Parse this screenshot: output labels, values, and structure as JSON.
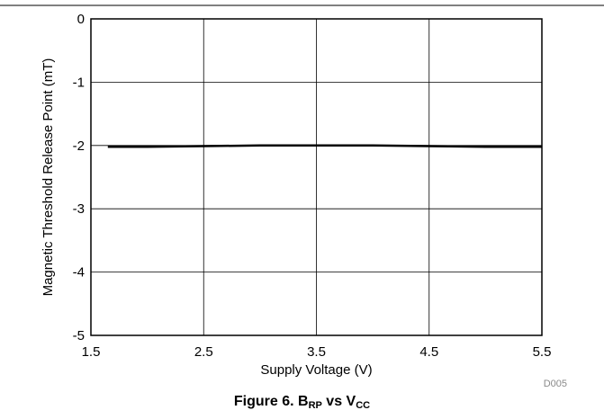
{
  "figure": {
    "id_label": "D005",
    "caption": {
      "prefix": "Figure 6. B",
      "sub1": "RP",
      "middle": " vs V",
      "sub2": "CC"
    }
  },
  "colors": {
    "line": "#000000",
    "grid": "#000000",
    "top_rule": "#000000",
    "watermark": "#8a8a8a"
  },
  "chart_data": {
    "type": "line",
    "title": "",
    "xlabel": "Supply Voltage (V)",
    "ylabel": "Magnetic Threshold Release Point (mT)",
    "xlim": [
      1.5,
      5.5
    ],
    "ylim": [
      -5,
      0
    ],
    "xticks": [
      1.5,
      2.5,
      3.5,
      4.5,
      5.5
    ],
    "xtick_labels": [
      "1.5",
      "2.5",
      "3.5",
      "4.5",
      "5.5"
    ],
    "yticks": [
      0,
      -1,
      -2,
      -3,
      -4,
      -5
    ],
    "ytick_labels": [
      "0",
      "-1",
      "-2",
      "-3",
      "-4",
      "-5"
    ],
    "grid": true,
    "series": [
      {
        "x": [
          1.65,
          2.0,
          2.5,
          3.0,
          3.5,
          4.0,
          4.5,
          5.0,
          5.5
        ],
        "values": [
          -2.02,
          -2.02,
          -2.01,
          -2.0,
          -2.0,
          -2.0,
          -2.01,
          -2.02,
          -2.02
        ]
      }
    ]
  }
}
